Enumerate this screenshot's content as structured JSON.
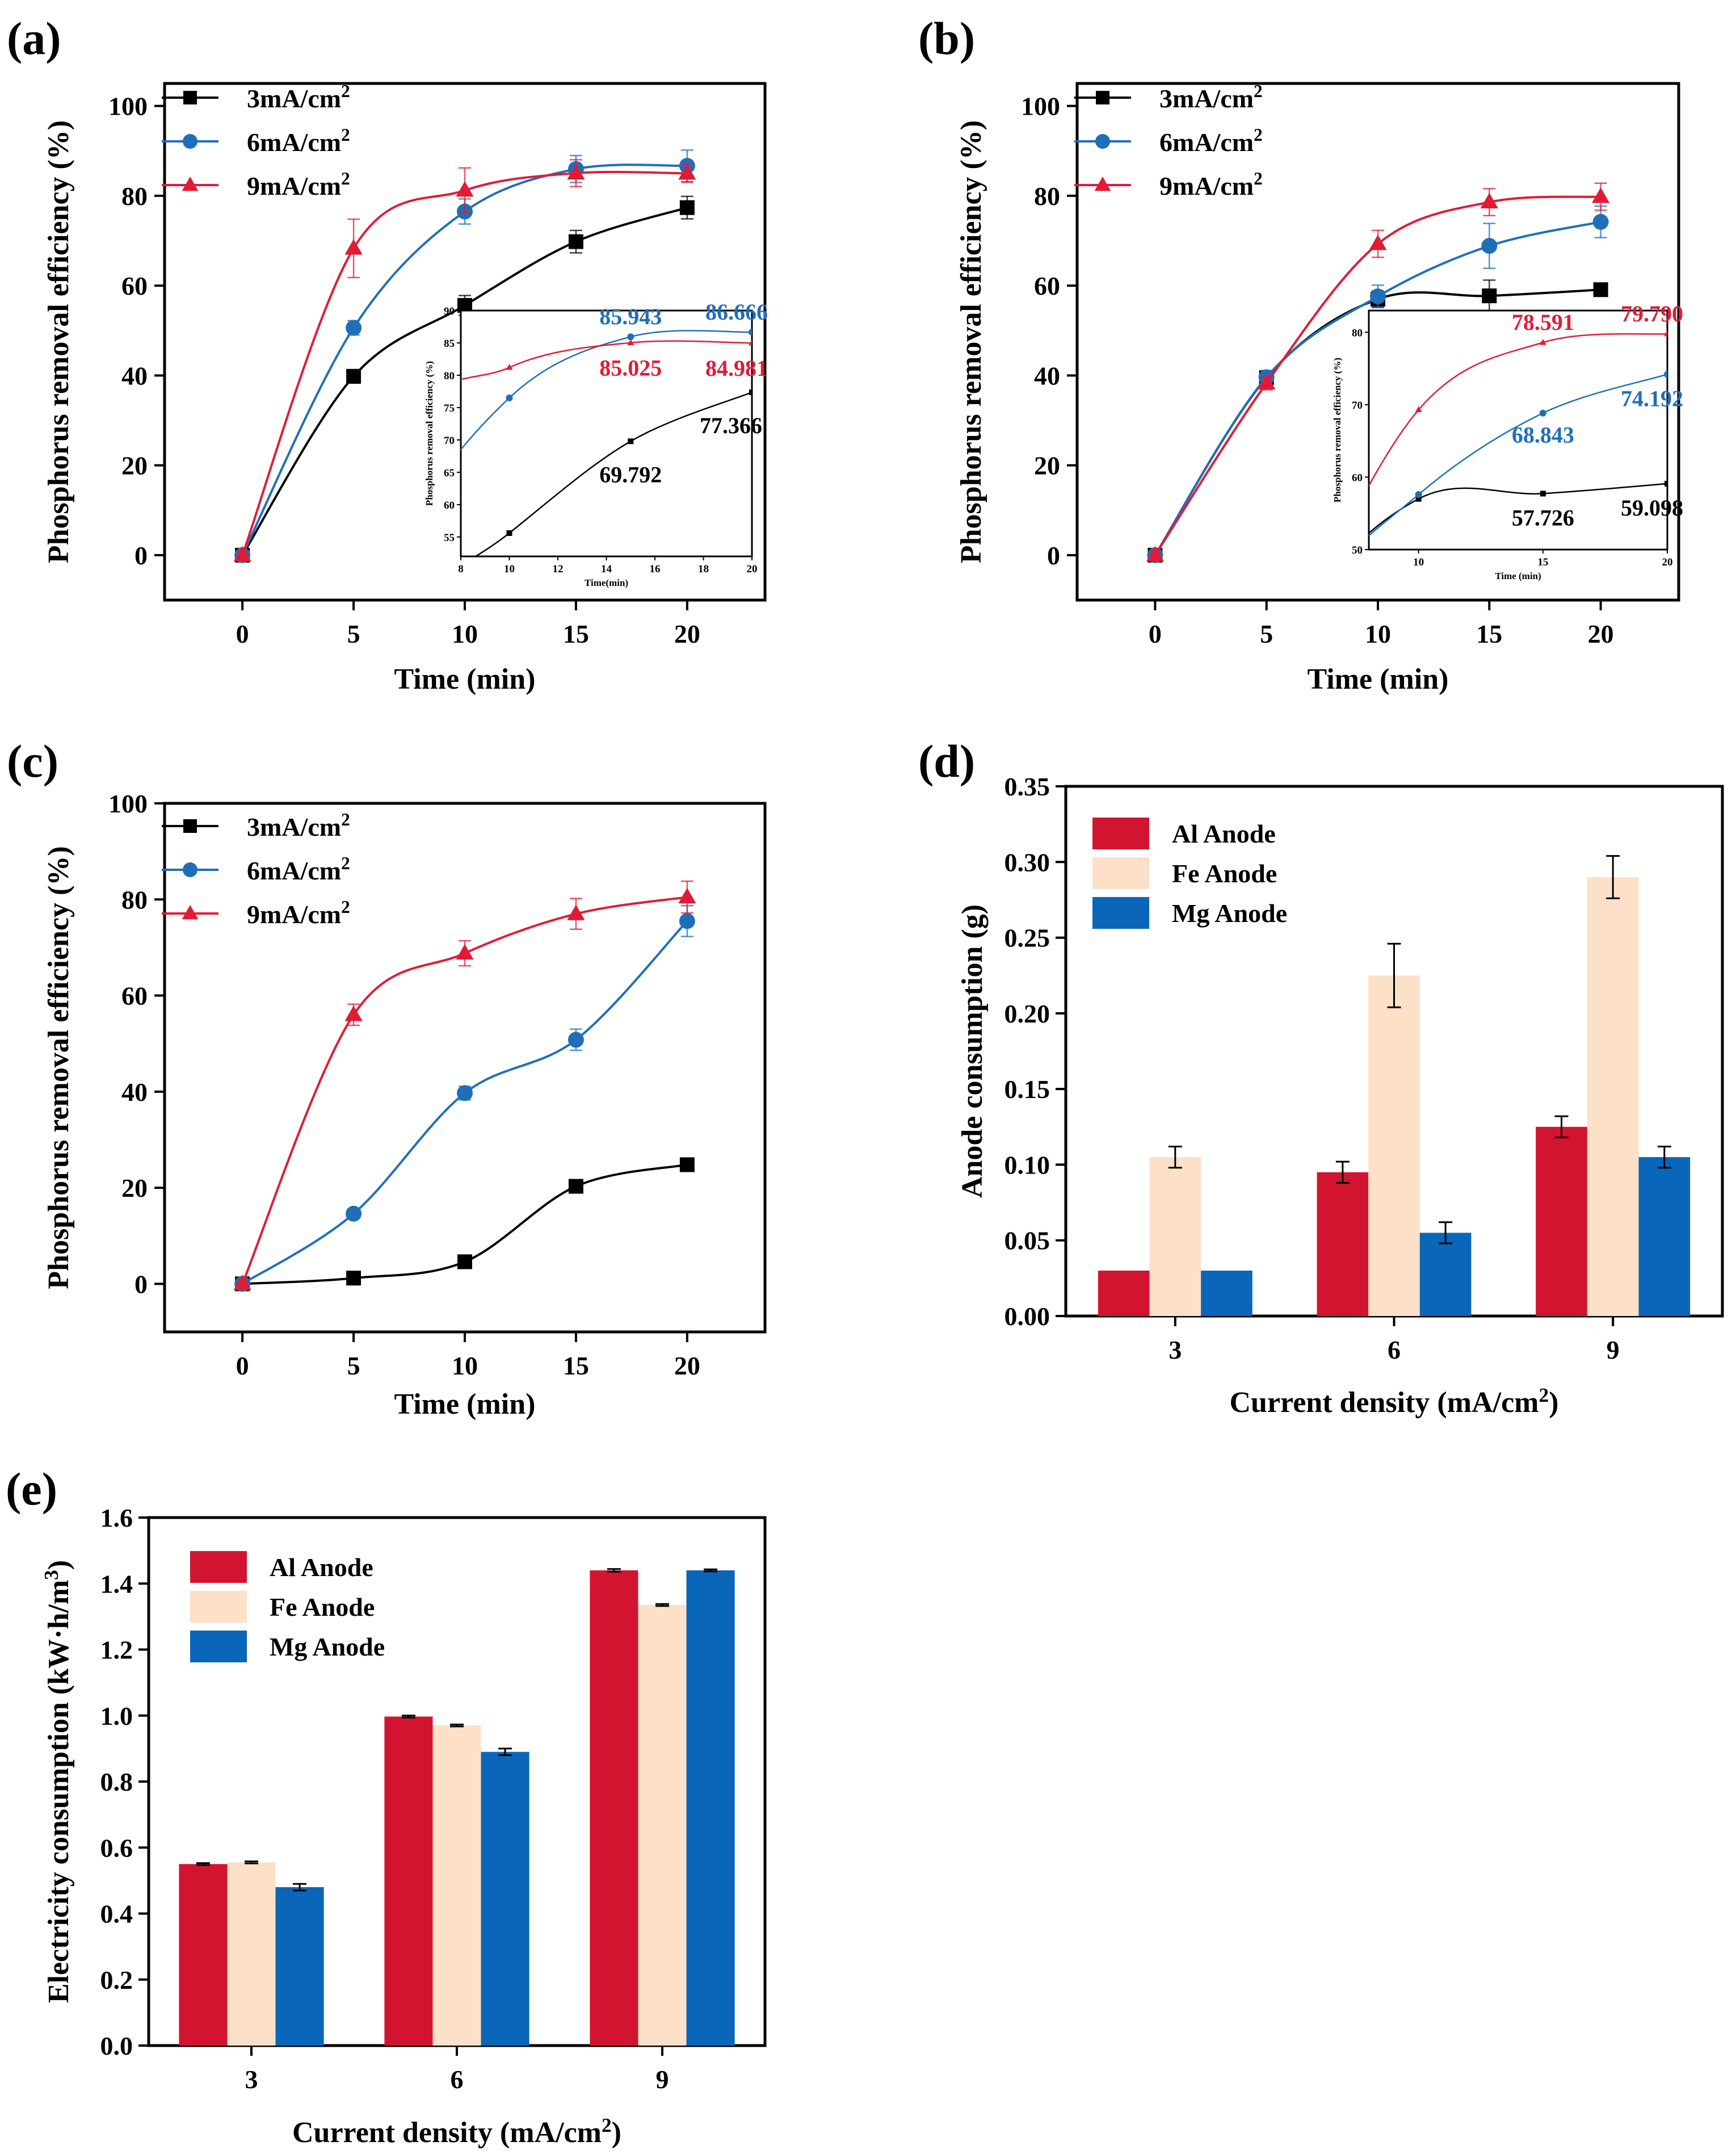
{
  "colors": {
    "black": "#000000",
    "blue": "#1f6fb8",
    "red": "#e11b36",
    "al": "#d31430",
    "fe": "#fce0c8",
    "mg": "#0a66b8"
  },
  "chart_data": [
    {
      "id": "a",
      "panel_label": "(a)",
      "type": "line",
      "xlabel": "Time (min)",
      "ylabel": "Phosphorus removal efficiency (%)",
      "xlim": [
        -3.5,
        23.5
      ],
      "ylim": [
        -10,
        105
      ],
      "xticks": [
        "0",
        "5",
        "10",
        "15",
        "20"
      ],
      "yticks": [
        "0",
        "20",
        "40",
        "60",
        "80",
        "100"
      ],
      "x": [
        0,
        5,
        10,
        15,
        20
      ],
      "series": [
        {
          "name": "3mA/cm",
          "sup": "2",
          "color": "#000000",
          "marker": "square",
          "values": [
            0,
            39.8,
            55.6,
            69.792,
            77.366
          ],
          "errors": [
            1,
            1.5,
            2.2,
            2.5,
            2.5
          ]
        },
        {
          "name": "6mA/cm",
          "sup": "2",
          "color": "#1f6fb8",
          "marker": "circle",
          "values": [
            0,
            50.6,
            76.5,
            85.943,
            86.666
          ],
          "errors": [
            1,
            1.6,
            2.8,
            3,
            3.5
          ]
        },
        {
          "name": "9mA/cm",
          "sup": "2",
          "color": "#e11b36",
          "marker": "triangle",
          "values": [
            0,
            68.3,
            81.2,
            85.025,
            84.981
          ],
          "errors": [
            1,
            6.5,
            5,
            3,
            2
          ]
        }
      ],
      "inset": {
        "xlabel": "Time(min)",
        "ylabel": "Phosphorus removal efficiency (%)",
        "xlim": [
          8,
          20
        ],
        "ylim": [
          52,
          90
        ],
        "xticks": [
          "8",
          "10",
          "12",
          "14",
          "16",
          "18",
          "20"
        ],
        "yticks": [
          "55",
          "60",
          "65",
          "70",
          "75",
          "80",
          "85",
          "90"
        ],
        "annotations": [
          {
            "text": "85.943",
            "color": "#1f6fb8"
          },
          {
            "text": "86.666",
            "color": "#1f6fb8"
          },
          {
            "text": "85.025",
            "color": "#e11b36"
          },
          {
            "text": "84.981",
            "color": "#e11b36"
          },
          {
            "text": "69.792",
            "color": "#000000"
          },
          {
            "text": "77.366",
            "color": "#000000"
          }
        ]
      }
    },
    {
      "id": "b",
      "panel_label": "(b)",
      "type": "line",
      "xlabel": "Time (min)",
      "ylabel": "Phosphorus removal efficiency (%)",
      "xlim": [
        -3.5,
        23.5
      ],
      "ylim": [
        -10,
        105
      ],
      "xticks": [
        "0",
        "5",
        "10",
        "15",
        "20"
      ],
      "yticks": [
        "0",
        "20",
        "40",
        "60",
        "80",
        "100"
      ],
      "x": [
        0,
        5,
        10,
        15,
        20
      ],
      "series": [
        {
          "name": "3mA/cm",
          "sup": "2",
          "color": "#000000",
          "marker": "square",
          "values": [
            0,
            39.5,
            57.0,
            57.726,
            59.098
          ],
          "errors": [
            1,
            1.5,
            1.8,
            3.5,
            1
          ]
        },
        {
          "name": "6mA/cm",
          "sup": "2",
          "color": "#1f6fb8",
          "marker": "circle",
          "values": [
            0,
            39.6,
            57.6,
            68.843,
            74.192
          ],
          "errors": [
            1,
            1.5,
            2.5,
            5,
            3.5
          ]
        },
        {
          "name": "9mA/cm",
          "sup": "2",
          "color": "#e11b36",
          "marker": "triangle",
          "values": [
            0,
            38.3,
            69.3,
            78.591,
            79.79
          ],
          "errors": [
            1,
            1.5,
            3,
            3,
            3
          ]
        }
      ],
      "inset": {
        "xlabel": "Time (min)",
        "ylabel": "Phosphorus removal efficiency (%)",
        "xlim": [
          8,
          20
        ],
        "ylim": [
          50,
          83
        ],
        "xticks": [
          "10",
          "15",
          "20"
        ],
        "yticks": [
          "50",
          "60",
          "70",
          "80"
        ],
        "annotations": [
          {
            "text": "78.591",
            "color": "#e11b36"
          },
          {
            "text": "79.790",
            "color": "#e11b36"
          },
          {
            "text": "68.843",
            "color": "#1f6fb8"
          },
          {
            "text": "74.192",
            "color": "#1f6fb8"
          },
          {
            "text": "57.726",
            "color": "#000000"
          },
          {
            "text": "59.098",
            "color": "#000000"
          }
        ]
      }
    },
    {
      "id": "c",
      "panel_label": "(c)",
      "type": "line",
      "xlabel": "Time (min)",
      "ylabel": "Phosphorus removal efficiency (%)",
      "xlim": [
        -3.5,
        23.5
      ],
      "ylim": [
        -10,
        100
      ],
      "xticks": [
        "0",
        "5",
        "10",
        "15",
        "20"
      ],
      "yticks": [
        "0",
        "20",
        "40",
        "60",
        "80",
        "100"
      ],
      "x": [
        0,
        5,
        10,
        15,
        20
      ],
      "series": [
        {
          "name": "3mA/cm",
          "sup": "2",
          "color": "#000000",
          "marker": "square",
          "values": [
            0,
            1.2,
            4.6,
            20.3,
            24.8
          ],
          "errors": [
            0.6,
            0.6,
            0.6,
            0.8,
            0.8
          ]
        },
        {
          "name": "6mA/cm",
          "sup": "2",
          "color": "#1f6fb8",
          "marker": "circle",
          "values": [
            0,
            14.6,
            39.7,
            50.8,
            75.5
          ],
          "errors": [
            0.6,
            0.8,
            1.4,
            2.2,
            3.2
          ]
        },
        {
          "name": "9mA/cm",
          "sup": "2",
          "color": "#e11b36",
          "marker": "triangle",
          "values": [
            0,
            56.0,
            68.8,
            77.0,
            80.5
          ],
          "errors": [
            0.6,
            2.2,
            2.6,
            3.2,
            3.3
          ]
        }
      ]
    },
    {
      "id": "d",
      "panel_label": "(d)",
      "type": "bar",
      "xlabel": "Current density (mA/cm",
      "xlabel_sup": "2",
      "xlabel_end": ")",
      "ylabel": "Anode consumption (g)",
      "ylim": [
        0,
        0.35
      ],
      "yticks": [
        "0.00",
        "0.05",
        "0.10",
        "0.15",
        "0.20",
        "0.25",
        "0.30",
        "0.35"
      ],
      "categories": [
        "3",
        "6",
        "9"
      ],
      "series": [
        {
          "name": "Al Anode",
          "color": "#d31430",
          "values": [
            0.03,
            0.095,
            0.125
          ],
          "errors": [
            0,
            0.007,
            0.007
          ]
        },
        {
          "name": "Fe Anode",
          "color": "#fce0c8",
          "values": [
            0.105,
            0.225,
            0.29
          ],
          "errors": [
            0.007,
            0.021,
            0.014
          ]
        },
        {
          "name": "Mg Anode",
          "color": "#0a66b8",
          "values": [
            0.03,
            0.055,
            0.105
          ],
          "errors": [
            0,
            0.007,
            0.007
          ]
        }
      ]
    },
    {
      "id": "e",
      "panel_label": "(e)",
      "type": "bar",
      "xlabel": "Current density (mA/cm",
      "xlabel_sup": "2",
      "xlabel_end": ")",
      "ylabel": "Electricity consumption (kW·h/m",
      "ylabel_sup": "3",
      "ylabel_end": ")",
      "ylim": [
        0,
        1.6
      ],
      "yticks": [
        "0.0",
        "0.2",
        "0.4",
        "0.6",
        "0.8",
        "1.0",
        "1.2",
        "1.4",
        "1.6"
      ],
      "categories": [
        "3",
        "6",
        "9"
      ],
      "series": [
        {
          "name": "Al Anode",
          "color": "#d31430",
          "values": [
            0.55,
            0.997,
            1.44
          ],
          "errors": [
            0.003,
            0.003,
            0.004
          ]
        },
        {
          "name": "Fe Anode",
          "color": "#fce0c8",
          "values": [
            0.555,
            0.97,
            1.335
          ],
          "errors": [
            0.003,
            0.003,
            0.003
          ]
        },
        {
          "name": "Mg Anode",
          "color": "#0a66b8",
          "values": [
            0.48,
            0.89,
            1.44
          ],
          "errors": [
            0.01,
            0.01,
            0.003
          ]
        }
      ]
    }
  ]
}
